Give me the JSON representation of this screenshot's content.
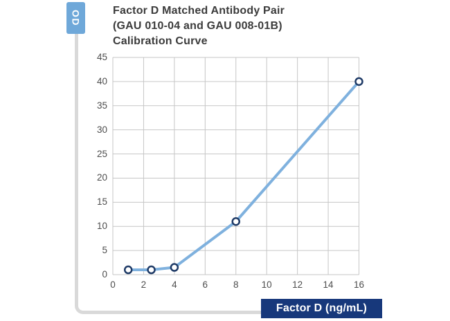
{
  "chart_data": {
    "type": "line",
    "title": "Factor D Matched Antibody Pair (GAU 010-04 and GAU 008-01B) Calibration Curve",
    "title_lines": [
      "Factor D Matched Antibody Pair",
      "(GAU 010-04 and GAU 008-01B)",
      "Calibration Curve"
    ],
    "xlabel": "Factor D (ng/mL)",
    "ylabel": "OD",
    "x": [
      1,
      2.5,
      4,
      8,
      16
    ],
    "y": [
      1,
      1,
      1.5,
      11,
      40
    ],
    "xlim": [
      0,
      16
    ],
    "ylim": [
      0,
      45
    ],
    "x_ticks": [
      0,
      2,
      4,
      6,
      8,
      10,
      12,
      14,
      16
    ],
    "y_ticks": [
      0,
      5,
      10,
      15,
      20,
      25,
      30,
      35,
      40,
      45
    ],
    "grid": true,
    "legend_position": "none",
    "marker_style": "open-circle"
  },
  "colors": {
    "line": "#7fb1de",
    "marker_stroke": "#1e3a66",
    "marker_fill": "#ffffff",
    "grid": "#c6c6c6",
    "tick_text": "#4d4d4d",
    "title_text": "#3b3b3b",
    "ylabel_badge_bg": "#6fa8d9",
    "xlabel_badge_bg": "#17387b",
    "badge_text": "#ffffff",
    "connector": "#d9d9d9"
  }
}
